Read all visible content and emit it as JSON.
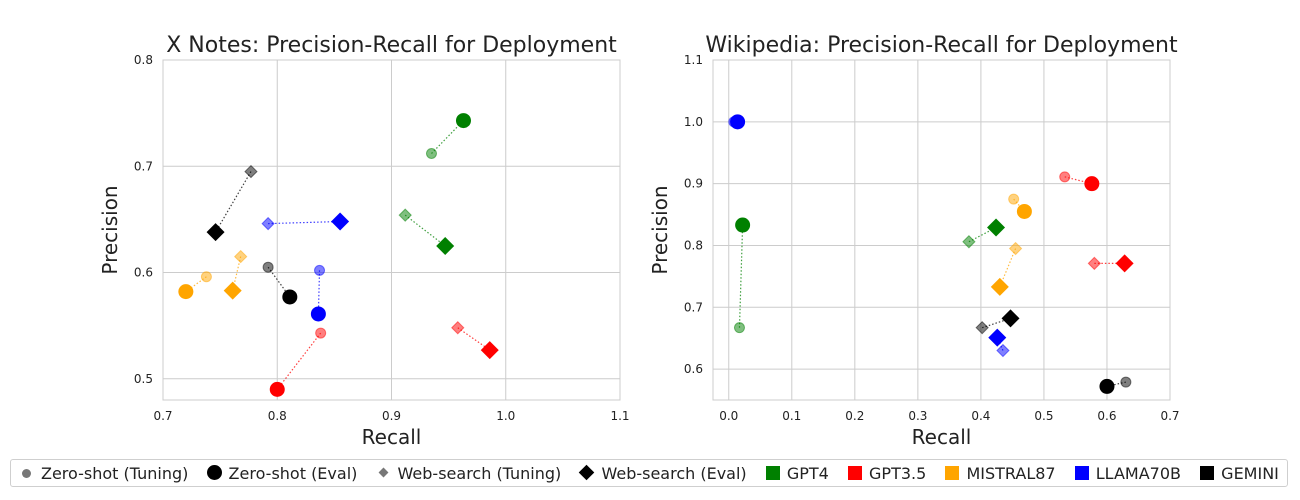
{
  "chart_data": [
    {
      "type": "scatter",
      "title": "X Notes: Precision-Recall for Deployment",
      "xlabel": "Recall",
      "ylabel": "Precision",
      "xlim": [
        0.7,
        1.1
      ],
      "ylim": [
        0.48,
        0.8
      ],
      "xticks": [
        "0.7",
        "0.8",
        "0.9",
        "1.0",
        "1.1"
      ],
      "xtick_values": [
        0.7,
        0.8,
        0.9,
        1.0,
        1.1
      ],
      "yticks": [
        "0.5",
        "0.6",
        "0.7",
        "0.8"
      ],
      "ytick_values": [
        0.5,
        0.6,
        0.7,
        0.8
      ],
      "grid": true,
      "series": [
        {
          "model": "GPT4",
          "color": "#008000",
          "zero_shot": {
            "tuning": [
              0.935,
              0.712
            ],
            "eval": [
              0.963,
              0.743
            ]
          },
          "web_search": {
            "tuning": [
              0.912,
              0.654
            ],
            "eval": [
              0.947,
              0.625
            ]
          }
        },
        {
          "model": "GPT3.5",
          "color": "#ff0000",
          "zero_shot": {
            "tuning": [
              0.838,
              0.543
            ],
            "eval": [
              0.8,
              0.49
            ]
          },
          "web_search": {
            "tuning": [
              0.958,
              0.548
            ],
            "eval": [
              0.986,
              0.527
            ]
          }
        },
        {
          "model": "MISTRAL87",
          "color": "#ffa500",
          "zero_shot": {
            "tuning": [
              0.738,
              0.596
            ],
            "eval": [
              0.72,
              0.582
            ]
          },
          "web_search": {
            "tuning": [
              0.768,
              0.615
            ],
            "eval": [
              0.761,
              0.583
            ]
          }
        },
        {
          "model": "LLAMA70B",
          "color": "#0000ff",
          "zero_shot": {
            "tuning": [
              0.837,
              0.602
            ],
            "eval": [
              0.836,
              0.561
            ]
          },
          "web_search": {
            "tuning": [
              0.792,
              0.646
            ],
            "eval": [
              0.855,
              0.648
            ]
          }
        },
        {
          "model": "GEMINI",
          "color": "#000000",
          "zero_shot": {
            "tuning": [
              0.792,
              0.605
            ],
            "eval": [
              0.811,
              0.577
            ]
          },
          "web_search": {
            "tuning": [
              0.777,
              0.695
            ],
            "eval": [
              0.746,
              0.638
            ]
          }
        }
      ]
    },
    {
      "type": "scatter",
      "title": "Wikipedia: Precision-Recall for Deployment",
      "xlabel": "Recall",
      "ylabel": "Precision",
      "xlim": [
        -0.025,
        0.7
      ],
      "ylim": [
        0.55,
        1.1
      ],
      "xticks": [
        "0.0",
        "0.1",
        "0.2",
        "0.3",
        "0.4",
        "0.5",
        "0.6",
        "0.7"
      ],
      "xtick_values": [
        0.0,
        0.1,
        0.2,
        0.3,
        0.4,
        0.5,
        0.6,
        0.7
      ],
      "yticks": [
        "0.6",
        "0.7",
        "0.8",
        "0.9",
        "1.0",
        "1.1"
      ],
      "ytick_values": [
        0.6,
        0.7,
        0.8,
        0.9,
        1.0,
        1.1
      ],
      "grid": true,
      "series": [
        {
          "model": "GPT4",
          "color": "#008000",
          "zero_shot": {
            "tuning": [
              0.017,
              0.667
            ],
            "eval": [
              0.022,
              0.833
            ]
          },
          "web_search": {
            "tuning": [
              0.381,
              0.806
            ],
            "eval": [
              0.424,
              0.829
            ]
          }
        },
        {
          "model": "GPT3.5",
          "color": "#ff0000",
          "zero_shot": {
            "tuning": [
              0.533,
              0.911
            ],
            "eval": [
              0.576,
              0.9
            ]
          },
          "web_search": {
            "tuning": [
              0.58,
              0.771
            ],
            "eval": [
              0.628,
              0.771
            ]
          }
        },
        {
          "model": "MISTRAL87",
          "color": "#ffa500",
          "zero_shot": {
            "tuning": [
              0.452,
              0.875
            ],
            "eval": [
              0.469,
              0.855
            ]
          },
          "web_search": {
            "tuning": [
              0.455,
              0.795
            ],
            "eval": [
              0.43,
              0.733
            ]
          }
        },
        {
          "model": "LLAMA70B",
          "color": "#0000ff",
          "zero_shot": {
            "tuning": [
              0.008,
              1.0
            ],
            "eval": [
              0.014,
              1.0
            ]
          },
          "web_search": {
            "tuning": [
              0.435,
              0.63
            ],
            "eval": [
              0.426,
              0.651
            ]
          }
        },
        {
          "model": "GEMINI",
          "color": "#000000",
          "zero_shot": {
            "tuning": [
              0.63,
              0.579
            ],
            "eval": [
              0.6,
              0.572
            ]
          },
          "web_search": {
            "tuning": [
              0.402,
              0.667
            ],
            "eval": [
              0.447,
              0.682
            ]
          }
        }
      ]
    }
  ],
  "legend": {
    "placement": "bottom",
    "items": [
      {
        "label": "Zero-shot (Tuning)",
        "shape": "circle-small"
      },
      {
        "label": "Zero-shot (Eval)",
        "shape": "circle-big"
      },
      {
        "label": "Web-search (Tuning)",
        "shape": "diamond-small"
      },
      {
        "label": "Web-search (Eval)",
        "shape": "diamond-big"
      },
      {
        "label": "GPT4",
        "shape": "square",
        "color": "#008000"
      },
      {
        "label": "GPT3.5",
        "shape": "square",
        "color": "#ff0000"
      },
      {
        "label": "MISTRAL87",
        "shape": "square",
        "color": "#ffa500"
      },
      {
        "label": "LLAMA70B",
        "shape": "square",
        "color": "#0000ff"
      },
      {
        "label": "GEMINI",
        "shape": "square",
        "color": "#000000"
      }
    ]
  }
}
